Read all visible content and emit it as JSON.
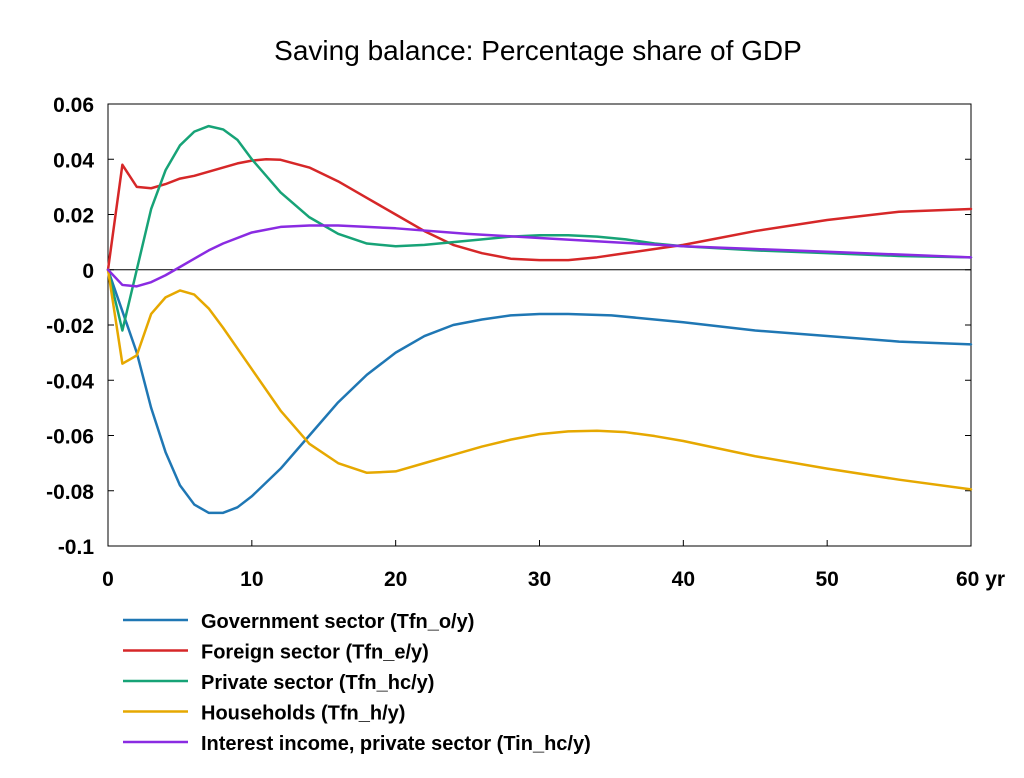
{
  "chart_data": {
    "type": "line",
    "title": "Saving balance: Percentage share of GDP",
    "xlabel": "",
    "ylabel": "",
    "x_unit_label": "yr",
    "xlim": [
      0,
      60
    ],
    "ylim": [
      -0.1,
      0.06
    ],
    "x_ticks": [
      0,
      10,
      20,
      30,
      40,
      50,
      60
    ],
    "x_tick_labels": [
      "0",
      "10",
      "20",
      "30",
      "40",
      "50",
      "60 yr"
    ],
    "y_ticks": [
      0.06,
      0.04,
      0.02,
      0,
      -0.02,
      -0.04,
      -0.06,
      -0.08,
      -0.1
    ],
    "y_tick_labels": [
      "0.06",
      "0.04",
      "0.02",
      "0",
      "-0.02",
      "-0.04",
      "-0.06",
      "-0.08",
      "-0.1"
    ],
    "grid": false,
    "zero_line": true,
    "legend_position": "bottom-left",
    "series": [
      {
        "name": "Government sector (Tfn_o/y)",
        "color": "#1f77b4",
        "points": [
          [
            0,
            0
          ],
          [
            1,
            -0.015
          ],
          [
            2,
            -0.03
          ],
          [
            3,
            -0.05
          ],
          [
            4,
            -0.066
          ],
          [
            5,
            -0.078
          ],
          [
            6,
            -0.085
          ],
          [
            7,
            -0.088
          ],
          [
            8,
            -0.088
          ],
          [
            9,
            -0.086
          ],
          [
            10,
            -0.082
          ],
          [
            12,
            -0.072
          ],
          [
            14,
            -0.06
          ],
          [
            16,
            -0.048
          ],
          [
            18,
            -0.038
          ],
          [
            20,
            -0.03
          ],
          [
            22,
            -0.024
          ],
          [
            24,
            -0.02
          ],
          [
            26,
            -0.018
          ],
          [
            28,
            -0.0165
          ],
          [
            30,
            -0.016
          ],
          [
            32,
            -0.016
          ],
          [
            35,
            -0.0165
          ],
          [
            40,
            -0.019
          ],
          [
            45,
            -0.022
          ],
          [
            50,
            -0.024
          ],
          [
            55,
            -0.026
          ],
          [
            60,
            -0.027
          ]
        ]
      },
      {
        "name": "Foreign sector (Tfn_e/y)",
        "color": "#d62728",
        "points": [
          [
            0,
            0
          ],
          [
            1,
            0.038
          ],
          [
            2,
            0.03
          ],
          [
            3,
            0.0295
          ],
          [
            4,
            0.031
          ],
          [
            5,
            0.033
          ],
          [
            6,
            0.034
          ],
          [
            7,
            0.0355
          ],
          [
            8,
            0.037
          ],
          [
            9,
            0.0385
          ],
          [
            10,
            0.0395
          ],
          [
            11,
            0.04
          ],
          [
            12,
            0.0398
          ],
          [
            14,
            0.037
          ],
          [
            16,
            0.032
          ],
          [
            18,
            0.026
          ],
          [
            20,
            0.02
          ],
          [
            22,
            0.014
          ],
          [
            24,
            0.009
          ],
          [
            26,
            0.006
          ],
          [
            28,
            0.004
          ],
          [
            30,
            0.0035
          ],
          [
            32,
            0.0035
          ],
          [
            34,
            0.0045
          ],
          [
            36,
            0.006
          ],
          [
            38,
            0.0075
          ],
          [
            40,
            0.009
          ],
          [
            42,
            0.011
          ],
          [
            45,
            0.014
          ],
          [
            50,
            0.018
          ],
          [
            55,
            0.021
          ],
          [
            60,
            0.022
          ]
        ]
      },
      {
        "name": "Private sector (Tfn_hc/y)",
        "color": "#17a377",
        "points": [
          [
            0,
            0
          ],
          [
            1,
            -0.022
          ],
          [
            2,
            0
          ],
          [
            3,
            0.022
          ],
          [
            4,
            0.036
          ],
          [
            5,
            0.045
          ],
          [
            6,
            0.05
          ],
          [
            7,
            0.052
          ],
          [
            8,
            0.0508
          ],
          [
            9,
            0.047
          ],
          [
            10,
            0.04
          ],
          [
            12,
            0.028
          ],
          [
            14,
            0.019
          ],
          [
            16,
            0.013
          ],
          [
            18,
            0.0095
          ],
          [
            20,
            0.0085
          ],
          [
            22,
            0.009
          ],
          [
            24,
            0.01
          ],
          [
            26,
            0.011
          ],
          [
            28,
            0.012
          ],
          [
            30,
            0.0125
          ],
          [
            32,
            0.0125
          ],
          [
            34,
            0.012
          ],
          [
            36,
            0.011
          ],
          [
            38,
            0.0095
          ],
          [
            40,
            0.0085
          ],
          [
            45,
            0.007
          ],
          [
            50,
            0.006
          ],
          [
            55,
            0.005
          ],
          [
            60,
            0.0045
          ]
        ]
      },
      {
        "name": "Households (Tfn_h/y)",
        "color": "#e6a800",
        "points": [
          [
            0,
            0
          ],
          [
            1,
            -0.034
          ],
          [
            2,
            -0.031
          ],
          [
            3,
            -0.016
          ],
          [
            4,
            -0.01
          ],
          [
            5,
            -0.0075
          ],
          [
            6,
            -0.009
          ],
          [
            7,
            -0.014
          ],
          [
            8,
            -0.021
          ],
          [
            10,
            -0.036
          ],
          [
            12,
            -0.051
          ],
          [
            14,
            -0.063
          ],
          [
            16,
            -0.07
          ],
          [
            18,
            -0.0735
          ],
          [
            20,
            -0.073
          ],
          [
            22,
            -0.07
          ],
          [
            24,
            -0.067
          ],
          [
            26,
            -0.064
          ],
          [
            28,
            -0.0615
          ],
          [
            30,
            -0.0595
          ],
          [
            32,
            -0.0585
          ],
          [
            34,
            -0.0583
          ],
          [
            36,
            -0.0588
          ],
          [
            38,
            -0.0602
          ],
          [
            40,
            -0.062
          ],
          [
            45,
            -0.0675
          ],
          [
            50,
            -0.072
          ],
          [
            55,
            -0.076
          ],
          [
            60,
            -0.0795
          ]
        ]
      },
      {
        "name": "Interest income, private sector (Tin_hc/y)",
        "color": "#8a2be2",
        "points": [
          [
            0,
            0
          ],
          [
            1,
            -0.0055
          ],
          [
            2,
            -0.006
          ],
          [
            3,
            -0.0045
          ],
          [
            4,
            -0.002
          ],
          [
            5,
            0.001
          ],
          [
            6,
            0.004
          ],
          [
            7,
            0.007
          ],
          [
            8,
            0.0095
          ],
          [
            10,
            0.0135
          ],
          [
            12,
            0.0155
          ],
          [
            14,
            0.016
          ],
          [
            16,
            0.016
          ],
          [
            18,
            0.0155
          ],
          [
            20,
            0.015
          ],
          [
            25,
            0.013
          ],
          [
            30,
            0.0115
          ],
          [
            35,
            0.01
          ],
          [
            40,
            0.0085
          ],
          [
            45,
            0.0075
          ],
          [
            50,
            0.0065
          ],
          [
            55,
            0.0055
          ],
          [
            60,
            0.0045
          ]
        ]
      }
    ]
  }
}
